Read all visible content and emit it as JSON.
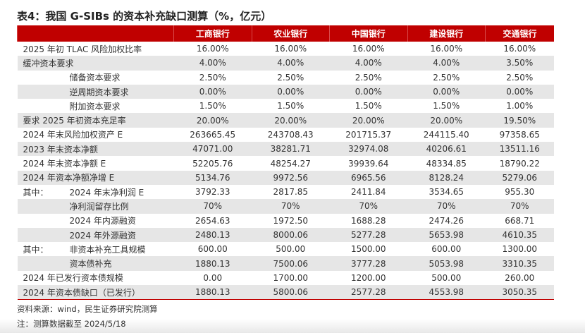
{
  "title": "表4：我国 G-SIBs 的资本补充缺口测算（%，亿元）",
  "headers": [
    "工商银行",
    "农业银行",
    "中国银行",
    "建设银行",
    "交通银行"
  ],
  "rows": [
    {
      "prefix": "",
      "label": "2025 年初 TLAC 风险加权比率",
      "indent": 0,
      "values": [
        "16.00%",
        "16.00%",
        "16.00%",
        "16.00%",
        "16.00%"
      ]
    },
    {
      "prefix": "",
      "label": "缓冲资本要求",
      "indent": 0,
      "values": [
        "4.00%",
        "4.00%",
        "4.00%",
        "4.00%",
        "3.50%"
      ]
    },
    {
      "prefix": "",
      "label": "储备资本要求",
      "indent": 1,
      "values": [
        "2.50%",
        "2.50%",
        "2.50%",
        "2.50%",
        "2.50%"
      ]
    },
    {
      "prefix": "",
      "label": "逆周期资本要求",
      "indent": 1,
      "values": [
        "0.00%",
        "0.00%",
        "0.00%",
        "0.00%",
        "0.00%"
      ]
    },
    {
      "prefix": "",
      "label": "附加资本要求",
      "indent": 1,
      "values": [
        "1.50%",
        "1.50%",
        "1.50%",
        "1.50%",
        "1.00%"
      ]
    },
    {
      "prefix": "",
      "label": "要求 2025 年初资本充足率",
      "indent": 0,
      "values": [
        "20.00%",
        "20.00%",
        "20.00%",
        "20.00%",
        "19.50%"
      ]
    },
    {
      "prefix": "",
      "label": "2024 年末风险加权资产 E",
      "indent": 0,
      "values": [
        "263665.45",
        "243708.43",
        "201715.37",
        "244115.40",
        "97358.65"
      ]
    },
    {
      "prefix": "",
      "label": "2023 年末资本净额",
      "indent": 0,
      "values": [
        "47071.00",
        "38281.71",
        "32974.08",
        "40206.61",
        "13511.16"
      ]
    },
    {
      "prefix": "",
      "label": "2024 年末资本净额 E",
      "indent": 0,
      "values": [
        "52205.76",
        "48254.27",
        "39939.64",
        "48334.85",
        "18790.22"
      ]
    },
    {
      "prefix": "",
      "label": "2024 年资本净额净增 E",
      "indent": 0,
      "values": [
        "5134.76",
        "9972.56",
        "6965.56",
        "8128.24",
        "5279.06"
      ]
    },
    {
      "prefix": "其中：",
      "label": "2024 年末净利润 E",
      "indent": 2,
      "values": [
        "3792.33",
        "2817.85",
        "2411.84",
        "3534.65",
        "955.30"
      ]
    },
    {
      "prefix": "",
      "label": "净利润留存比例",
      "indent": 1,
      "values": [
        "70%",
        "70%",
        "70%",
        "70%",
        "70%"
      ]
    },
    {
      "prefix": "",
      "label": "2024 年内源融资",
      "indent": 1,
      "values": [
        "2654.63",
        "1972.50",
        "1688.28",
        "2474.26",
        "668.71"
      ]
    },
    {
      "prefix": "",
      "label": "2024 年外源融资",
      "indent": 1,
      "values": [
        "2480.13",
        "8000.06",
        "5277.28",
        "5653.98",
        "4610.35"
      ]
    },
    {
      "prefix": "其中：",
      "label": "非资本补充工具规模",
      "indent": 2,
      "values": [
        "600.00",
        "500.00",
        "1500.00",
        "600.00",
        "1300.00"
      ]
    },
    {
      "prefix": "",
      "label": "资本债补充",
      "indent": 1,
      "values": [
        "1880.13",
        "7500.06",
        "3777.28",
        "5053.98",
        "3310.35"
      ]
    },
    {
      "prefix": "",
      "label": "2024 年已发行资本债规模",
      "indent": 0,
      "values": [
        "0.00",
        "1700.00",
        "1200.00",
        "500.00",
        "260.00"
      ]
    },
    {
      "prefix": "",
      "label": "2024 年资本债缺口（已发行）",
      "indent": 0,
      "values": [
        "1880.13",
        "5800.06",
        "2577.28",
        "4553.98",
        "3050.35"
      ]
    }
  ],
  "source": "资料来源：wind，民生证券研究院测算",
  "note": "注：测算数据截至 2024/5/18"
}
